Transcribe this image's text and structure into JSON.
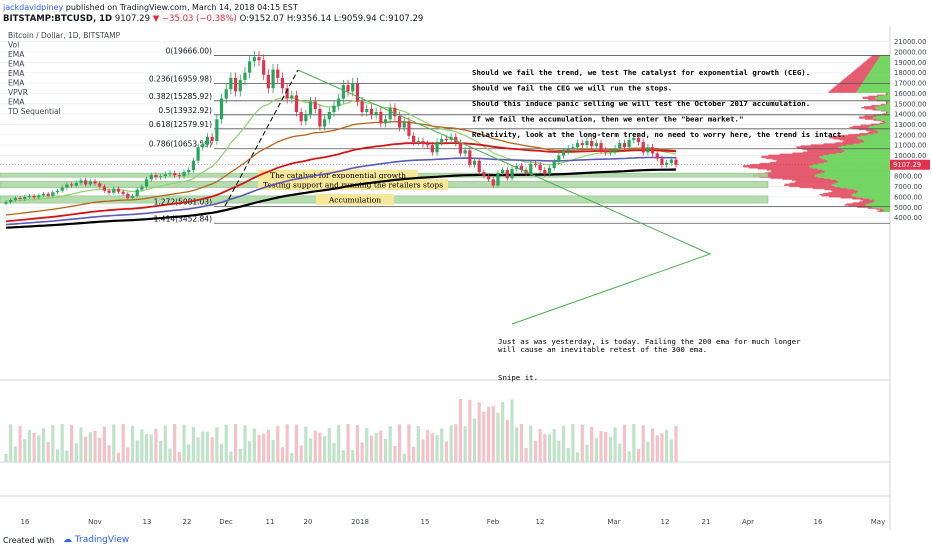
{
  "header": {
    "author": "jackdavidpiney",
    "published_text": "published on TradingView.com, March 14, 2018 04:15 EST",
    "symbol": "BITSTAMP:BTCUSD, 1D",
    "last": "9107.29",
    "change": "−35.03 (−0.38%)",
    "ohlc": "O:9152.07 H:9356.14 L:9059.94 C:9107.29"
  },
  "footer": {
    "created_with": "Created with",
    "brand": "TradingView"
  },
  "legend": [
    "Bitcoin / Dollar, 1D, BITSTAMP",
    "Vol",
    "EMA",
    "EMA",
    "EMA",
    "EMA",
    "VPVR",
    "EMA",
    "TD Sequential"
  ],
  "colors": {
    "up": "#26a65b",
    "down": "#e0324b",
    "ema_green": "#8fd36b",
    "ema_orange": "#b5651d",
    "ema_red": "#d01818",
    "ema_purple": "#5c5bb5",
    "ema_black": "#000000",
    "zone": "#a9d6a0",
    "zone_label": "#f7e79a",
    "triangle": "#4caf50"
  },
  "chart_data": {
    "type": "candlestick",
    "x_labels": [
      "16",
      "Nov",
      "13",
      "22",
      "Dec",
      "11",
      "20",
      "2018",
      "15",
      "Feb",
      "12",
      "Mar",
      "12",
      "21",
      "Apr",
      "16",
      "May"
    ],
    "y_ticks": [
      4000,
      5000,
      6000,
      7000,
      8000,
      9000,
      10000,
      11000,
      12000,
      13000,
      14000,
      15000,
      16000,
      17000,
      18000,
      19000,
      20000,
      21000
    ],
    "ylim": [
      3500,
      21500
    ],
    "last_price": 9107.29,
    "fib_levels": [
      {
        "label": "0(19666.00)",
        "value": 19666
      },
      {
        "label": "0.236(16959.98)",
        "value": 16960
      },
      {
        "label": "0.382(15285.92)",
        "value": 15286
      },
      {
        "label": "0.5(13932.92)",
        "value": 13933
      },
      {
        "label": "0.618(12579.91)",
        "value": 12580
      },
      {
        "label": "0.786(10653.59)",
        "value": 10654
      },
      {
        "label": "1.272(5081.03)",
        "value": 5081
      },
      {
        "label": "1.414(3452.84)",
        "value": 3453
      }
    ],
    "zones": [
      {
        "label": "The catalyst for exponential growth",
        "low": 7900,
        "high": 8300
      },
      {
        "label": "Testing support and running the retailers stops",
        "low": 6900,
        "high": 7500
      },
      {
        "label": "Accumulation",
        "low": 5400,
        "high": 6100
      }
    ],
    "notes": [
      "Should we fail the trend, we test The catalyst for exponential growth (CEG).",
      "Should we fail the CEG we will run the stops.",
      "Should this induce panic selling we will test the October 2017 accumulation.",
      "If we fail the accumulation, then we enter the \"bear market.\"",
      "Relativity, look at the long-term trend, no need to worry here, the trend is intact."
    ],
    "notes2": [
      "Just as was yesterday, is today. Failing the 200 ema for much longer",
      "will cause an inevitable retest of the 300 ema.",
      "Snipe it."
    ],
    "candles": [
      5500,
      5700,
      5900,
      5800,
      6000,
      6100,
      5950,
      6150,
      6300,
      6100,
      6450,
      6600,
      6900,
      7200,
      7100,
      7350,
      7600,
      7200,
      7500,
      7300,
      7000,
      6600,
      6400,
      6800,
      6500,
      6300,
      5900,
      6100,
      6700,
      7000,
      7700,
      8100,
      7900,
      8000,
      8200,
      8300,
      8100,
      8000,
      8400,
      8600,
      9500,
      10800,
      11100,
      11800,
      11400,
      13500,
      15500,
      16400,
      17500,
      16200,
      17300,
      18000,
      19100,
      19500,
      19200,
      17800,
      16500,
      18300,
      17500,
      16500,
      15500,
      15800,
      14200,
      13300,
      14000,
      15200,
      14500,
      12800,
      13500,
      14200,
      14800,
      15500,
      16800,
      16200,
      17000,
      15200,
      14200,
      14500,
      13900,
      14200,
      13100,
      13500,
      14600,
      13800,
      12700,
      13300,
      11900,
      11300,
      11400,
      11100,
      11000,
      10300,
      11300,
      11600,
      11500,
      11800,
      11200,
      10200,
      10500,
      9100,
      9500,
      8400,
      8000,
      7700,
      7100,
      8300,
      8600,
      7800,
      8700,
      9000,
      8600,
      8300,
      9200,
      9100,
      8600,
      8200,
      8800,
      9400,
      10000,
      10400,
      10700,
      10800,
      11200,
      11000,
      11400,
      10900,
      11200,
      10500,
      10300,
      10400,
      10700,
      11200,
      10800,
      11500,
      11700,
      11300,
      10300,
      10800,
      10200,
      9700,
      9100,
      9300,
      9600,
      9100
    ]
  }
}
